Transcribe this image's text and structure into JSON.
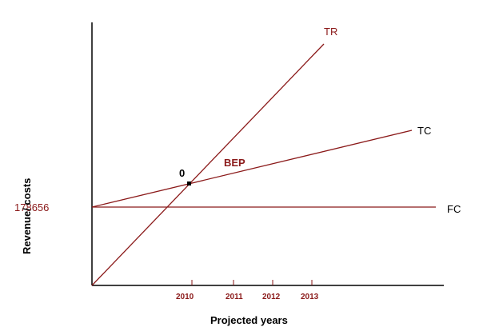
{
  "chart_data": {
    "type": "line",
    "xlabel": "Projected years",
    "ylabel": "Revenue/ costs",
    "y_tick_label": "178656",
    "x_ticks": [
      "2010",
      "2011",
      "2012",
      "2013"
    ],
    "lines": [
      {
        "name": "TR",
        "color": "#8b1a1a"
      },
      {
        "name": "TC",
        "color": "#8b1a1a"
      },
      {
        "name": "FC",
        "color": "#8b1a1a"
      }
    ],
    "annotations": {
      "bep_label": "BEP",
      "origin_marker": "0"
    },
    "colors": {
      "axis": "#000000",
      "line": "#8b1a1a",
      "text_dark": "#000000",
      "text_accent": "#8b1a1a"
    },
    "grid": false
  }
}
